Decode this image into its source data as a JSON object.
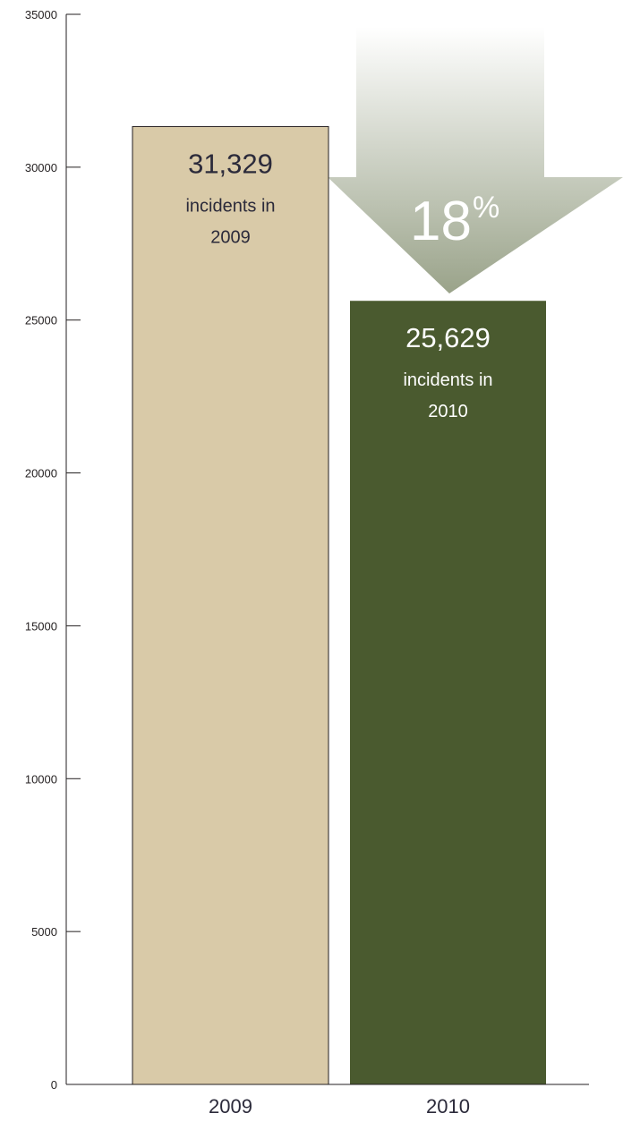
{
  "chart_data": {
    "type": "bar",
    "categories": [
      "2009",
      "2010"
    ],
    "values": [
      31329,
      25629
    ],
    "ylim": [
      0,
      35000
    ],
    "y_ticks": [
      0,
      5000,
      10000,
      15000,
      20000,
      25000,
      30000,
      35000
    ],
    "grid": false,
    "bar_colors": [
      "#d9caa8",
      "#4a5a2f"
    ],
    "bar_text_colors": [
      "#2b2a3a",
      "#ffffff"
    ],
    "bar_labels": [
      {
        "value_text": "31,329",
        "line1": "incidents in",
        "line2": "2009"
      },
      {
        "value_text": "25,629",
        "line1": "incidents in",
        "line2": "2010"
      }
    ],
    "annotation": {
      "shape": "down-arrow",
      "value": "18",
      "unit": "%",
      "color_top": "#ffffff",
      "color_bottom": "#9aa38a"
    }
  }
}
